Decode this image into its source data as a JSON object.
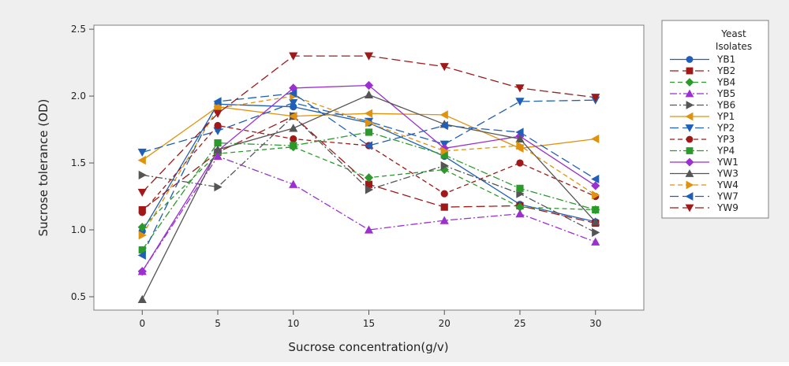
{
  "chart_data": {
    "type": "line",
    "title": "",
    "xlabel": "Sucrose concentration(g/v)",
    "ylabel": "Sucrose tolerance (OD)",
    "x": [
      0,
      5,
      10,
      15,
      20,
      25,
      30
    ],
    "x_ticks": [
      "0",
      "5",
      "10",
      "15",
      "20",
      "25",
      "30"
    ],
    "y_ticks": [
      "0.5",
      "1.0",
      "1.5",
      "2.0",
      "2.5"
    ],
    "xlim": [
      -3.2,
      33.2
    ],
    "ylim": [
      0.4,
      2.53
    ],
    "grid": false,
    "legend": {
      "title_line1": "Yeast",
      "title_line2": "Isolates",
      "placement": "right"
    },
    "series": [
      {
        "name": "YB1",
        "color": "#1f5fb8",
        "marker": "circle",
        "dash": "solid",
        "values": [
          0.99,
          1.94,
          1.92,
          1.8,
          1.55,
          1.19,
          1.06
        ]
      },
      {
        "name": "YB2",
        "color": "#a01818",
        "marker": "square",
        "dash": "longdash",
        "values": [
          1.15,
          1.58,
          1.85,
          1.34,
          1.17,
          1.18,
          1.05
        ]
      },
      {
        "name": "YB4",
        "color": "#2a9a2a",
        "marker": "diamond",
        "dash": "dash",
        "values": [
          1.02,
          1.57,
          1.62,
          1.39,
          1.45,
          1.17,
          1.15
        ]
      },
      {
        "name": "YB5",
        "color": "#9b2fd0",
        "marker": "triangle-up",
        "dash": "dashdot",
        "values": [
          0.69,
          1.55,
          1.34,
          1.0,
          1.07,
          1.12,
          0.91
        ]
      },
      {
        "name": "YB6",
        "color": "#555555",
        "marker": "triangle-right",
        "dash": "dashdot",
        "values": [
          1.41,
          1.32,
          1.85,
          1.3,
          1.48,
          1.27,
          0.98
        ]
      },
      {
        "name": "YP1",
        "color": "#e0920c",
        "marker": "triangle-left",
        "dash": "solid",
        "values": [
          1.52,
          1.92,
          1.85,
          1.87,
          1.86,
          1.61,
          1.68
        ]
      },
      {
        "name": "YP2",
        "color": "#1f5fb8",
        "marker": "triangle-down",
        "dash": "longdash",
        "values": [
          1.58,
          1.74,
          1.95,
          1.81,
          1.64,
          1.96,
          1.97
        ]
      },
      {
        "name": "YP3",
        "color": "#a01818",
        "marker": "circle",
        "dash": "dash",
        "values": [
          1.13,
          1.78,
          1.68,
          1.63,
          1.27,
          1.5,
          1.25
        ]
      },
      {
        "name": "YP4",
        "color": "#2a9a2a",
        "marker": "square",
        "dash": "dashdot",
        "values": [
          0.85,
          1.65,
          1.63,
          1.73,
          1.56,
          1.31,
          1.15
        ]
      },
      {
        "name": "YW1",
        "color": "#9b2fd0",
        "marker": "diamond",
        "dash": "solid",
        "values": [
          0.69,
          1.59,
          2.06,
          2.08,
          1.61,
          1.7,
          1.33
        ]
      },
      {
        "name": "YW3",
        "color": "#555555",
        "marker": "triangle-up",
        "dash": "solid",
        "values": [
          0.48,
          1.6,
          1.76,
          2.01,
          1.79,
          1.68,
          1.06
        ]
      },
      {
        "name": "YW4",
        "color": "#e0920c",
        "marker": "triangle-right",
        "dash": "dash",
        "values": [
          0.96,
          1.91,
          2.0,
          1.8,
          1.59,
          1.63,
          1.26
        ]
      },
      {
        "name": "YW7",
        "color": "#1f5fb8",
        "marker": "triangle-left",
        "dash": "longdash",
        "values": [
          0.81,
          1.96,
          2.02,
          1.63,
          1.78,
          1.73,
          1.38
        ]
      },
      {
        "name": "YW9",
        "color": "#a01818",
        "marker": "triangle-down",
        "dash": "longdash",
        "values": [
          1.28,
          1.87,
          2.3,
          2.3,
          2.22,
          2.06,
          1.99
        ]
      }
    ]
  }
}
